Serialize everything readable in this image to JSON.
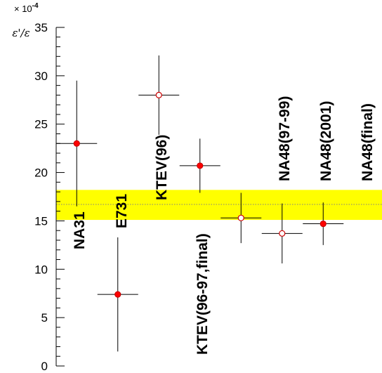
{
  "chart_data": {
    "type": "scatter",
    "ylabel": "ε'/ε",
    "y_multiplier": {
      "prefix": "× 10",
      "exponent": "-4"
    },
    "ylim": [
      0,
      35
    ],
    "yticks": [
      0,
      5,
      10,
      15,
      20,
      25,
      30,
      35
    ],
    "grid": false,
    "band": {
      "low": 15.1,
      "high": 18.2,
      "mean": 16.7,
      "color": "#ffff00"
    },
    "points": [
      {
        "label": "NA31",
        "y": 23.0,
        "yerr_low": 6.5,
        "yerr_high": 6.5,
        "filled": true
      },
      {
        "label": "E731",
        "y": 7.4,
        "yerr_low": 5.9,
        "yerr_high": 5.9,
        "filled": true
      },
      {
        "label": "KTEV(96)",
        "y": 28.0,
        "yerr_low": 4.1,
        "yerr_high": 4.1,
        "filled": false
      },
      {
        "label": "KTEV(96-97,final)",
        "y": 20.7,
        "yerr_low": 2.8,
        "yerr_high": 2.8,
        "filled": true
      },
      {
        "label": "NA48(97-99)",
        "y": 15.3,
        "yerr_low": 2.6,
        "yerr_high": 2.6,
        "filled": false
      },
      {
        "label": "NA48(2001)",
        "y": 13.7,
        "yerr_low": 3.1,
        "yerr_high": 3.1,
        "filled": false
      },
      {
        "label": "NA48(final)",
        "y": 14.7,
        "yerr_low": 2.2,
        "yerr_high": 2.2,
        "filled": true
      }
    ],
    "colors": {
      "marker_fill": "#ff0000",
      "marker_stroke": "#cc0000",
      "axis": "#000000",
      "mean_line": "#808080"
    }
  }
}
